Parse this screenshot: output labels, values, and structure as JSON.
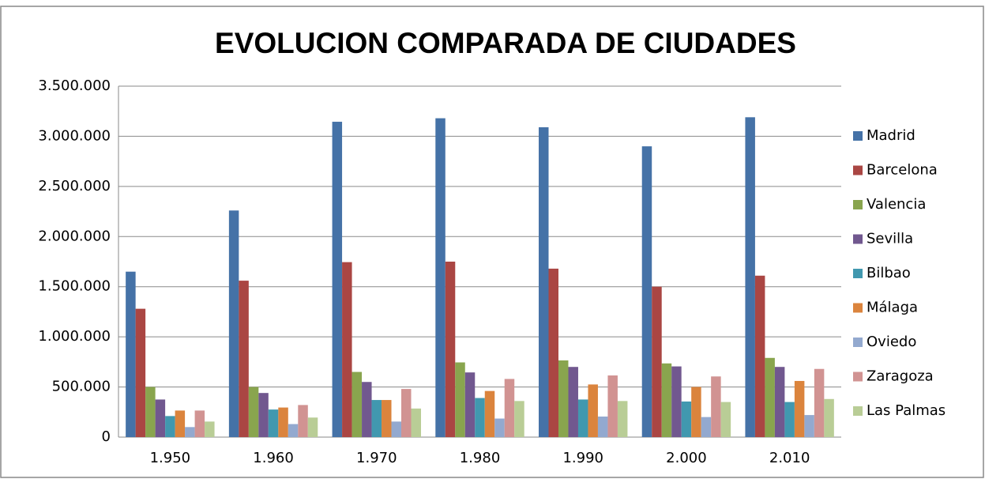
{
  "chart_data": {
    "type": "bar",
    "title": "EVOLUCION COMPARADA DE CIUDADES",
    "categories": [
      "1.950",
      "1.960",
      "1.970",
      "1.980",
      "1.990",
      "2.000",
      "2.010"
    ],
    "series": [
      {
        "name": "Madrid",
        "color": "#4572a7",
        "values": [
          1650000,
          2260000,
          3145000,
          3180000,
          3090000,
          2900000,
          3190000
        ]
      },
      {
        "name": "Barcelona",
        "color": "#aa4643",
        "values": [
          1280000,
          1560000,
          1745000,
          1750000,
          1680000,
          1500000,
          1610000
        ]
      },
      {
        "name": "Valencia",
        "color": "#89a54e",
        "values": [
          500000,
          500000,
          650000,
          745000,
          765000,
          735000,
          790000
        ]
      },
      {
        "name": "Sevilla",
        "color": "#71588f",
        "values": [
          375000,
          440000,
          550000,
          645000,
          700000,
          705000,
          700000
        ]
      },
      {
        "name": "Bilbao",
        "color": "#4198af",
        "values": [
          210000,
          275000,
          370000,
          390000,
          375000,
          355000,
          350000
        ]
      },
      {
        "name": "Málaga",
        "color": "#db843d",
        "values": [
          265000,
          295000,
          370000,
          460000,
          525000,
          500000,
          560000
        ]
      },
      {
        "name": "Oviedo",
        "color": "#93a9cf",
        "values": [
          100000,
          130000,
          155000,
          185000,
          205000,
          200000,
          220000
        ]
      },
      {
        "name": "Zaragoza",
        "color": "#d19392",
        "values": [
          265000,
          320000,
          480000,
          580000,
          615000,
          605000,
          680000
        ]
      },
      {
        "name": "Las Palmas",
        "color": "#b9cd96",
        "values": [
          155000,
          195000,
          285000,
          360000,
          360000,
          350000,
          380000
        ]
      }
    ],
    "ylim": [
      0,
      3500000
    ],
    "yticks": [
      0,
      {
        "value": 500000,
        "label": "500.000"
      },
      {
        "value": 1000000,
        "label": "1.000.000"
      },
      {
        "value": 1500000,
        "label": "1.500.000"
      },
      {
        "value": 2000000,
        "label": "2.000.000"
      },
      {
        "value": 2500000,
        "label": "2.500.000"
      },
      {
        "value": 3000000,
        "label": "3.000.000"
      },
      {
        "value": 3500000,
        "label": "3.500.000"
      }
    ],
    "grid": true,
    "legend": "right"
  }
}
